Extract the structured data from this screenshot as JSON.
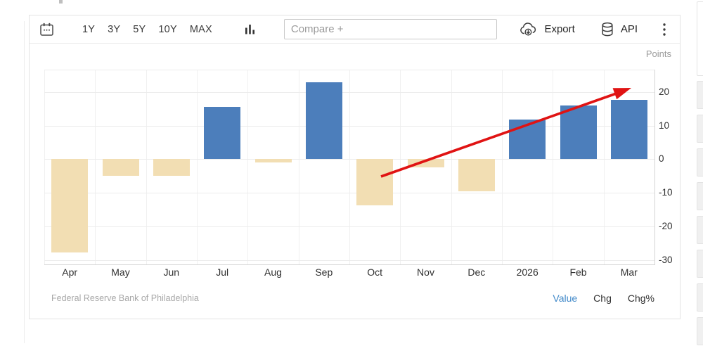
{
  "toolbar": {
    "range_buttons": [
      "1Y",
      "3Y",
      "5Y",
      "10Y",
      "MAX"
    ],
    "compare_placeholder": "Compare +",
    "export_label": "Export",
    "api_label": "API",
    "icons": [
      "calendar-icon",
      "column-chart-icon",
      "cloud-download-icon",
      "database-icon",
      "kebab-menu-icon"
    ]
  },
  "chart": {
    "unit_label": "Points",
    "source_text": "Federal Reserve Bank of Philadelphia",
    "footer_links": [
      {
        "label": "Value",
        "active": true
      },
      {
        "label": "Chg",
        "active": false
      },
      {
        "label": "Chg%",
        "active": false
      }
    ],
    "active_link_color": "#4189C9"
  },
  "chart_data": {
    "type": "bar",
    "categories": [
      "Apr",
      "May",
      "Jun",
      "Jul",
      "Aug",
      "Sep",
      "Oct",
      "Nov",
      "Dec",
      "2026",
      "Feb",
      "Mar"
    ],
    "values": [
      -27.9,
      -4.9,
      -4.9,
      15.6,
      -1.0,
      23.0,
      -13.8,
      -2.4,
      -9.6,
      11.9,
      15.9,
      17.7
    ],
    "title": "",
    "xlabel": "",
    "ylabel": "Points",
    "yaxis_side": "right",
    "yticks": [
      20,
      10,
      0,
      -10,
      -20,
      -30
    ],
    "ylim": [
      -31.5,
      26.8
    ],
    "grid": true,
    "legend": false,
    "colors": {
      "positive": "#4C7EBB",
      "negative": "#F2DEB3"
    },
    "annotations": [
      {
        "type": "arrow",
        "color": "#E01313",
        "description": "red upward trend arrow from below the Oct bar to the top right near the 20-point line"
      }
    ]
  }
}
